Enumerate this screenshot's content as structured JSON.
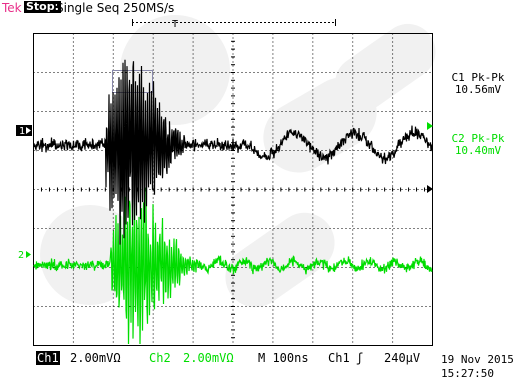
{
  "header": {
    "brand": "Tek",
    "run_state": "Stop:",
    "acquisition": "Single Seq  250MS/s",
    "trigger_marker": "T"
  },
  "markers": {
    "ch1": "1",
    "ch2": "2"
  },
  "measurements": {
    "c1_label": "C1 Pk-Pk",
    "c1_value": "10.56mV",
    "c2_label": "C2 Pk-Pk",
    "c2_value": "10.40mV"
  },
  "status": {
    "ch1_label": "Ch1",
    "ch1_scale": "2.00mVΩ",
    "ch2_label": "Ch2",
    "ch2_scale": "2.00mVΩ",
    "timebase": "M 100ns",
    "trigger_source": "Ch1",
    "trigger_slope": "ʃ",
    "trigger_level": "240µV",
    "date": "19 Nov 2015",
    "time": "15:27:50"
  },
  "colors": {
    "ch1": "#000000",
    "ch2": "#00dd00",
    "brand": "#e8308a",
    "grid": "#000000",
    "watermark": "#d9d9d9"
  }
}
